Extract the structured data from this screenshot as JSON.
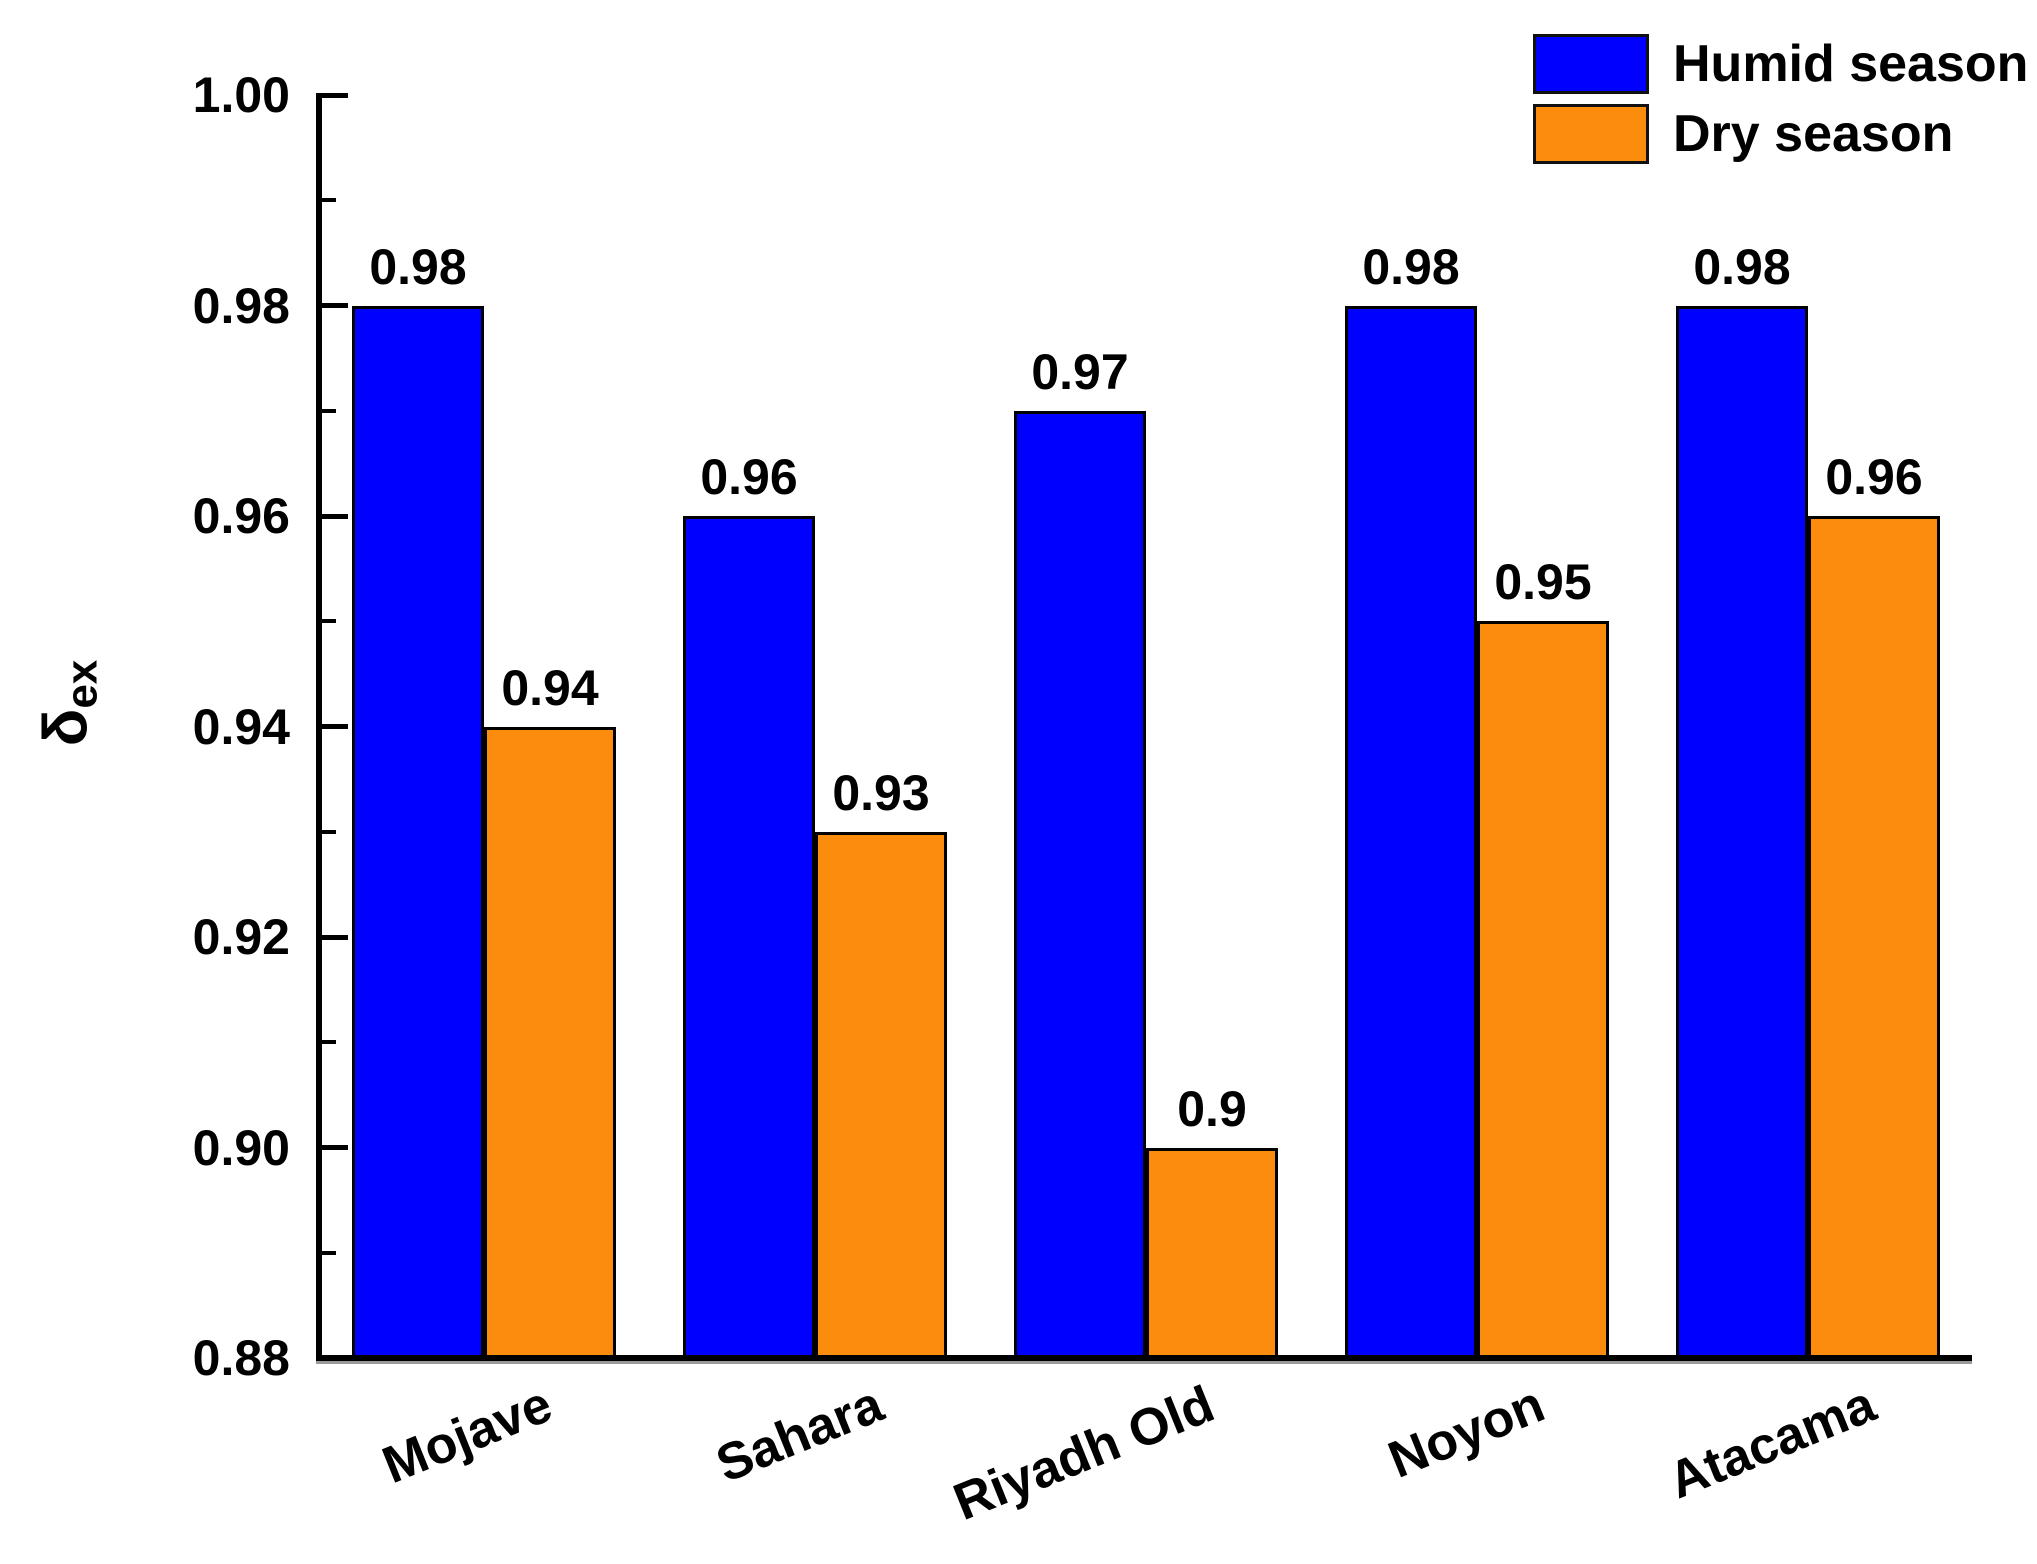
{
  "chart_data": {
    "type": "bar",
    "title": "",
    "categories": [
      "Mojave",
      "Sahara",
      "Riyadh Old",
      "Noyon",
      "Atacama"
    ],
    "series": [
      {
        "name": "Humid season",
        "color": "#0000FE",
        "values": [
          0.98,
          0.96,
          0.97,
          0.98,
          0.98
        ],
        "value_labels": [
          "0.98",
          "0.96",
          "0.97",
          "0.98",
          "0.98"
        ]
      },
      {
        "name": "Dry season",
        "color": "#FB8C0D",
        "values": [
          0.94,
          0.93,
          0.9,
          0.95,
          0.96
        ],
        "value_labels": [
          "0.94",
          "0.93",
          "0.9",
          "0.95",
          "0.96"
        ]
      }
    ],
    "xlabel": "",
    "ylabel": "δex",
    "ylabel_main": "δ",
    "ylabel_sub": "ex",
    "ylim": [
      0.88,
      1.0
    ],
    "ytick_labels": [
      "1.00",
      "0.98",
      "0.96",
      "0.94",
      "0.92",
      "0.90",
      "0.88"
    ],
    "ytick_values": [
      1.0,
      0.98,
      0.96,
      0.94,
      0.92,
      0.9,
      0.88
    ],
    "minor_tick_values": [
      0.99,
      0.97,
      0.95,
      0.93,
      0.91,
      0.89
    ],
    "grid": false,
    "legend_position": "top-right",
    "bar_outline_color": "#000000",
    "axis_color": "#000000"
  }
}
